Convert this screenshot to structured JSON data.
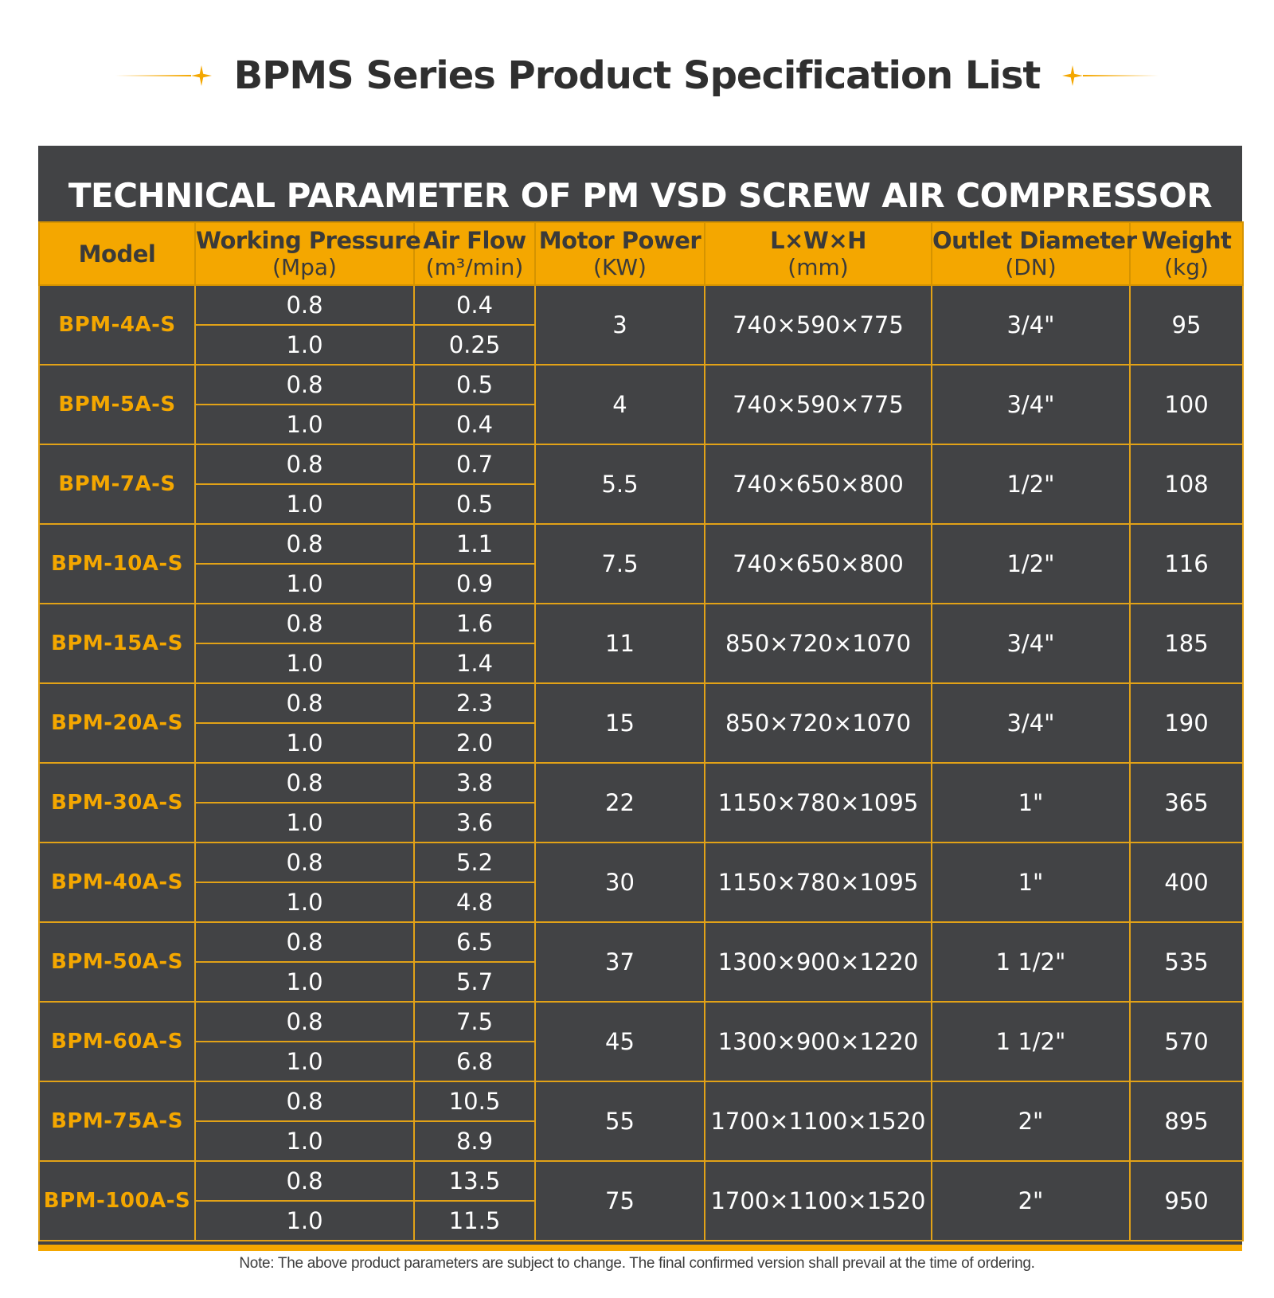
{
  "page_title": "BPMS Series Product Specification List",
  "panel_heading": "TECHNICAL PARAMETER OF PM VSD SCREW AIR COMPRESSOR",
  "accent_color": "#f4a700",
  "panel_color": "#424345",
  "columns": [
    {
      "label": "Model",
      "unit": ""
    },
    {
      "label": "Working Pressure",
      "unit": "(Mpa)"
    },
    {
      "label": "Air Flow",
      "unit": "(m³/min)"
    },
    {
      "label": "Motor Power",
      "unit": "(KW)"
    },
    {
      "label": "L×W×H",
      "unit": "(mm)"
    },
    {
      "label": "Outlet Diameter",
      "unit": "(DN)"
    },
    {
      "label": "Weight",
      "unit": "(kg)"
    }
  ],
  "rows": [
    {
      "model": "BPM-4A-S",
      "pressures": [
        "0.8",
        "1.0"
      ],
      "air_flows": [
        "0.4",
        "0.25"
      ],
      "motor_power": "3",
      "dimensions": "740×590×775",
      "outlet": "3/4\"",
      "weight": "95"
    },
    {
      "model": "BPM-5A-S",
      "pressures": [
        "0.8",
        "1.0"
      ],
      "air_flows": [
        "0.5",
        "0.4"
      ],
      "motor_power": "4",
      "dimensions": "740×590×775",
      "outlet": "3/4\"",
      "weight": "100"
    },
    {
      "model": "BPM-7A-S",
      "pressures": [
        "0.8",
        "1.0"
      ],
      "air_flows": [
        "0.7",
        "0.5"
      ],
      "motor_power": "5.5",
      "dimensions": "740×650×800",
      "outlet": "1/2\"",
      "weight": "108"
    },
    {
      "model": "BPM-10A-S",
      "pressures": [
        "0.8",
        "1.0"
      ],
      "air_flows": [
        "1.1",
        "0.9"
      ],
      "motor_power": "7.5",
      "dimensions": "740×650×800",
      "outlet": "1/2\"",
      "weight": "116"
    },
    {
      "model": "BPM-15A-S",
      "pressures": [
        "0.8",
        "1.0"
      ],
      "air_flows": [
        "1.6",
        "1.4"
      ],
      "motor_power": "11",
      "dimensions": "850×720×1070",
      "outlet": "3/4\"",
      "weight": "185"
    },
    {
      "model": "BPM-20A-S",
      "pressures": [
        "0.8",
        "1.0"
      ],
      "air_flows": [
        "2.3",
        "2.0"
      ],
      "motor_power": "15",
      "dimensions": "850×720×1070",
      "outlet": "3/4\"",
      "weight": "190"
    },
    {
      "model": "BPM-30A-S",
      "pressures": [
        "0.8",
        "1.0"
      ],
      "air_flows": [
        "3.8",
        "3.6"
      ],
      "motor_power": "22",
      "dimensions": "1150×780×1095",
      "outlet": "1\"",
      "weight": "365"
    },
    {
      "model": "BPM-40A-S",
      "pressures": [
        "0.8",
        "1.0"
      ],
      "air_flows": [
        "5.2",
        "4.8"
      ],
      "motor_power": "30",
      "dimensions": "1150×780×1095",
      "outlet": "1\"",
      "weight": "400"
    },
    {
      "model": "BPM-50A-S",
      "pressures": [
        "0.8",
        "1.0"
      ],
      "air_flows": [
        "6.5",
        "5.7"
      ],
      "motor_power": "37",
      "dimensions": "1300×900×1220",
      "outlet": "1 1/2\"",
      "weight": "535"
    },
    {
      "model": "BPM-60A-S",
      "pressures": [
        "0.8",
        "1.0"
      ],
      "air_flows": [
        "7.5",
        "6.8"
      ],
      "motor_power": "45",
      "dimensions": "1300×900×1220",
      "outlet": "1 1/2\"",
      "weight": "570"
    },
    {
      "model": "BPM-75A-S",
      "pressures": [
        "0.8",
        "1.0"
      ],
      "air_flows": [
        "10.5",
        "8.9"
      ],
      "motor_power": "55",
      "dimensions": "1700×1100×1520",
      "outlet": "2\"",
      "weight": "895"
    },
    {
      "model": "BPM-100A-S",
      "pressures": [
        "0.8",
        "1.0"
      ],
      "air_flows": [
        "13.5",
        "11.5"
      ],
      "motor_power": "75",
      "dimensions": "1700×1100×1520",
      "outlet": "2\"",
      "weight": "950"
    }
  ],
  "note": "Note: The above product parameters are subject to change. The final confirmed version shall prevail at the time of ordering."
}
